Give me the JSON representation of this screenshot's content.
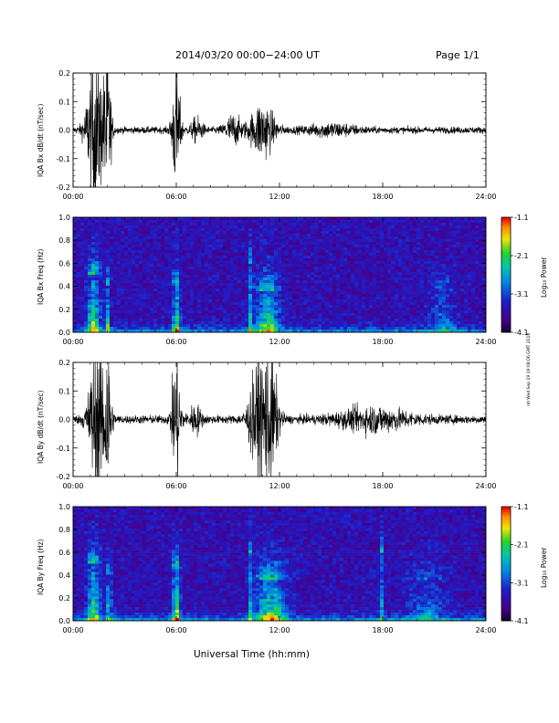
{
  "header": {
    "title": "2014/03/20  00:00−24:00 UT",
    "page": "Page 1/1"
  },
  "side_stamp": "ntl Wed Sep 19 19:08:06 GMT 2018",
  "x_axis": {
    "label": "Universal Time (hh:mm)",
    "ticks": [
      "00:00",
      "06:00",
      "12:00",
      "18:00",
      "24:00"
    ],
    "range_hours": [
      0,
      24
    ]
  },
  "colorbar": {
    "label": "Log₁₀ Power",
    "ticks": [
      "-1.1",
      "-2.1",
      "-3.1",
      "-4.1"
    ],
    "range": [
      -4.1,
      -1.1
    ]
  },
  "chart_data": [
    {
      "type": "line",
      "ylabel": "IQA Bx dB/dt (nT/sec)",
      "ylim": [
        -0.2,
        0.2
      ],
      "yticks": [
        "0.2",
        "0.1",
        "0.0",
        "-0.1",
        "-0.2"
      ],
      "x_unit": "hours UT",
      "baseline_noise": 0.012,
      "bursts": [
        {
          "center": 1.3,
          "width": 0.7,
          "amplitude": 0.28
        },
        {
          "center": 2.0,
          "width": 0.3,
          "amplitude": 0.25
        },
        {
          "center": 6.0,
          "width": 0.35,
          "amplitude": 0.22
        },
        {
          "center": 7.2,
          "width": 0.5,
          "amplitude": 0.04
        },
        {
          "center": 9.3,
          "width": 0.7,
          "amplitude": 0.05
        },
        {
          "center": 11.0,
          "width": 1.0,
          "amplitude": 0.1
        },
        {
          "center": 15.0,
          "width": 2.0,
          "amplitude": 0.02
        }
      ]
    },
    {
      "type": "heatmap",
      "ylabel": "IQA Bx Freq (Hz)",
      "ylim": [
        0.0,
        1.0
      ],
      "yticks": [
        "1.0",
        "0.8",
        "0.6",
        "0.4",
        "0.2",
        "0.0"
      ],
      "bands": [
        {
          "center": 1.2,
          "width": 0.5,
          "fmax": 0.5,
          "level": 0.55
        },
        {
          "center": 2.0,
          "width": 0.2,
          "fmax": 0.4,
          "level": 0.5
        },
        {
          "center": 6.0,
          "width": 0.3,
          "fmax": 0.4,
          "level": 0.6
        },
        {
          "center": 10.3,
          "width": 0.15,
          "fmax": 0.6,
          "level": 0.35
        },
        {
          "center": 11.3,
          "width": 1.0,
          "fmax": 0.35,
          "level": 0.55
        },
        {
          "center": 21.5,
          "width": 1.0,
          "fmax": 0.35,
          "level": 0.25
        }
      ]
    },
    {
      "type": "line",
      "ylabel": "IQA By dB/dt (nT/sec)",
      "ylim": [
        -0.2,
        0.2
      ],
      "yticks": [
        "0.2",
        "0.1",
        "0.0",
        "-0.1",
        "-0.2"
      ],
      "x_unit": "hours UT",
      "baseline_noise": 0.015,
      "bursts": [
        {
          "center": 1.4,
          "width": 0.7,
          "amplitude": 0.28
        },
        {
          "center": 2.0,
          "width": 0.3,
          "amplitude": 0.25
        },
        {
          "center": 6.0,
          "width": 0.35,
          "amplitude": 0.26
        },
        {
          "center": 7.1,
          "width": 0.5,
          "amplitude": 0.05
        },
        {
          "center": 10.8,
          "width": 0.8,
          "amplitude": 0.2
        },
        {
          "center": 11.5,
          "width": 0.6,
          "amplitude": 0.2
        },
        {
          "center": 17.5,
          "width": 3.0,
          "amplitude": 0.04
        }
      ]
    },
    {
      "type": "heatmap",
      "ylabel": "IQA By Freq (Hz)",
      "ylim": [
        0.0,
        1.0
      ],
      "yticks": [
        "1.0",
        "0.8",
        "0.6",
        "0.4",
        "0.2",
        "0.0"
      ],
      "bands": [
        {
          "center": 1.2,
          "width": 0.5,
          "fmax": 0.5,
          "level": 0.55
        },
        {
          "center": 2.1,
          "width": 0.2,
          "fmax": 0.4,
          "level": 0.5
        },
        {
          "center": 6.0,
          "width": 0.3,
          "fmax": 0.45,
          "level": 0.65
        },
        {
          "center": 10.3,
          "width": 0.15,
          "fmax": 0.6,
          "level": 0.35
        },
        {
          "center": 11.5,
          "width": 1.2,
          "fmax": 0.35,
          "level": 0.6
        },
        {
          "center": 17.9,
          "width": 0.15,
          "fmax": 0.6,
          "level": 0.4
        },
        {
          "center": 20.5,
          "width": 1.5,
          "fmax": 0.35,
          "level": 0.25
        }
      ]
    }
  ]
}
